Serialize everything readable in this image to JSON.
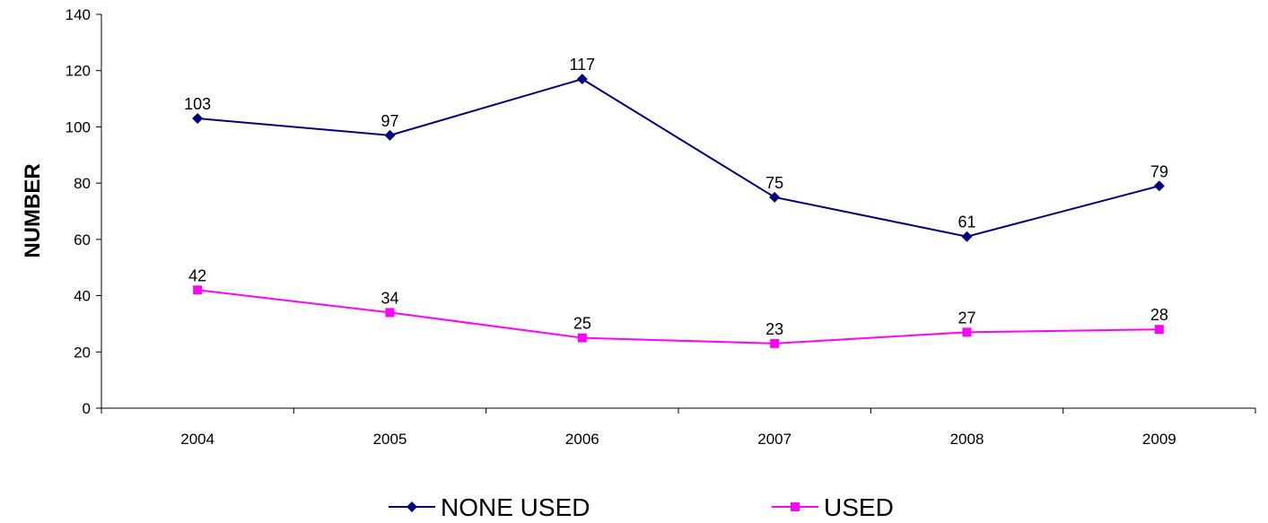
{
  "chart_data": {
    "type": "line",
    "categories": [
      "2004",
      "2005",
      "2006",
      "2007",
      "2008",
      "2009"
    ],
    "series": [
      {
        "name": "NONE USED",
        "values": [
          103,
          97,
          117,
          75,
          61,
          79
        ],
        "color": "#000080",
        "marker": "diamond"
      },
      {
        "name": "USED",
        "values": [
          42,
          34,
          25,
          23,
          27,
          28
        ],
        "color": "#FF00FF",
        "marker": "square"
      }
    ],
    "title": "",
    "xlabel": "",
    "ylabel": "NUMBER",
    "ylim": [
      0,
      140
    ],
    "yticks": [
      "0",
      "20",
      "40",
      "60",
      "80",
      "100",
      "120",
      "140"
    ],
    "grid": false,
    "legend_position": "bottom"
  }
}
